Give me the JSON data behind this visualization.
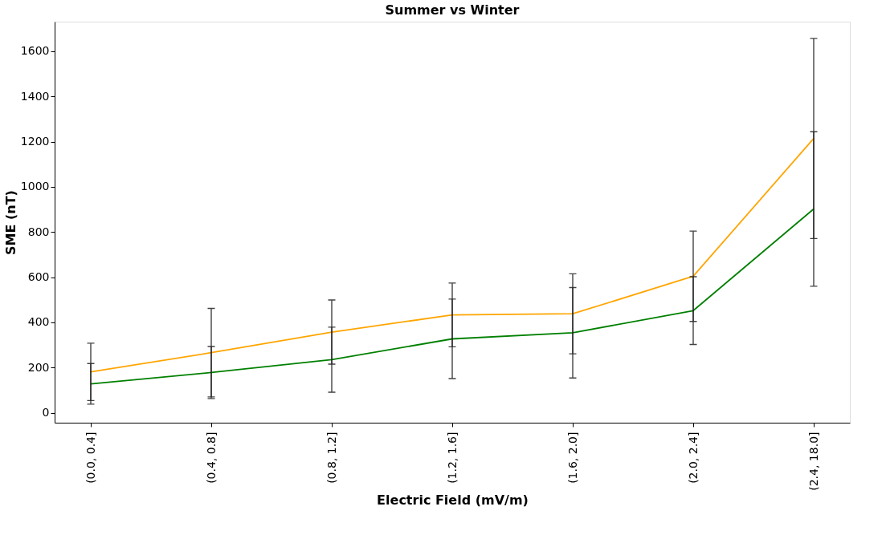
{
  "chart_data": {
    "type": "line",
    "title": "Summer vs Winter",
    "xlabel": "Electric Field (mV/m)",
    "ylabel": "SME (nT)",
    "categories": [
      "(0.0, 0.4]",
      "(0.4, 0.8]",
      "(0.8, 1.2]",
      "(1.2, 1.6]",
      "(1.6, 2.0]",
      "(2.0, 2.4]",
      "(2.4, 18.0]"
    ],
    "series": [
      {
        "color": "#ffa500",
        "values": [
          181,
          266,
          357,
          433,
          438,
          604,
          1214
        ],
        "errors": [
          127,
          196,
          142,
          141,
          177,
          200,
          443
        ]
      },
      {
        "color": "#008000",
        "values": [
          128,
          178,
          235,
          327,
          354,
          452,
          902
        ],
        "errors": [
          90,
          115,
          144,
          176,
          200,
          150,
          342
        ]
      }
    ],
    "ylim": [
      -44,
      1731
    ],
    "yticks": [
      0,
      200,
      400,
      600,
      800,
      1000,
      1200,
      1400,
      1600
    ],
    "grid": false,
    "marker": "none",
    "line_style": "solid"
  }
}
